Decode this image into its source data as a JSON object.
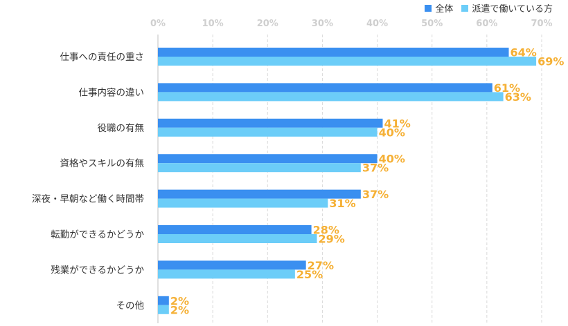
{
  "chart_data": {
    "type": "bar",
    "orientation": "horizontal",
    "categories": [
      "仕事への責任の重さ",
      "仕事内容の違い",
      "役職の有無",
      "資格やスキルの有無",
      "深夜・早朝など働く時間帯",
      "転勤ができるかどうか",
      "残業ができるかどうか",
      "その他"
    ],
    "series": [
      {
        "name": "全体",
        "color": "#3a8ff0",
        "values": [
          64,
          61,
          41,
          40,
          37,
          28,
          27,
          2
        ]
      },
      {
        "name": "派遣で働いている方",
        "color": "#6ccdf8",
        "values": [
          69,
          63,
          40,
          37,
          31,
          29,
          25,
          2
        ]
      }
    ],
    "x_ticks": [
      0,
      10,
      20,
      30,
      40,
      50,
      60,
      70
    ],
    "x_tick_labels": [
      "0%",
      "10%",
      "20%",
      "30%",
      "40%",
      "50%",
      "60%",
      "70%"
    ],
    "xlim": [
      0,
      70
    ],
    "value_suffix": "%",
    "label_color": "#f5b035",
    "grid": true,
    "legend_position": "top-right"
  }
}
